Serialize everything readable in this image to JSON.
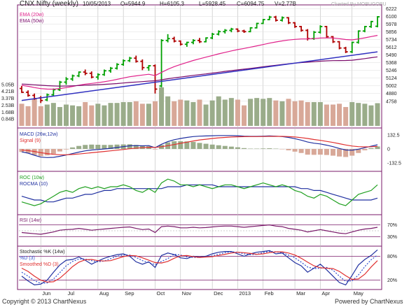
{
  "header": {
    "title": "CNX Nifty (weekly)",
    "date": "10/05/2013",
    "open": "O=5944.9",
    "high": "H=6105.3",
    "low": "L=5928.45",
    "close": "C=6094.75",
    "volume": "V=2.77B",
    "charted_by": "Charted By MOBUGOBU"
  },
  "footer": {
    "copyright": "Copyright © 2013 ChartNexus",
    "powered": "Powered by ChartNexus"
  },
  "colors": {
    "up": "#00a000",
    "down": "#b00000",
    "ema20": "#e0208a",
    "ema50": "#7a0a6a",
    "trend": "#3030c0",
    "vol_up": "#9aac8a",
    "vol_down": "#d8a898",
    "macd": "#2030a0",
    "signal": "#e03030",
    "roc": "#20a020",
    "rocma": "#2030a0",
    "rsi": "#7a1a6a",
    "k": "#2030a0",
    "d": "#3050d0",
    "smooth_d": "#e03030"
  },
  "chart_data": [
    {
      "type": "candlestick",
      "title": "CNX Nifty (weekly)",
      "legend": [
        "EMA (20w)",
        "EMA (50w)"
      ],
      "yticks": [
        6222,
        6100,
        5978,
        5856,
        5734,
        5612,
        5490,
        5368,
        5246,
        5124,
        5002,
        4880,
        4758
      ],
      "ylim": [
        4700,
        6250
      ],
      "volume_ticks": [
        "5.05B",
        "4.21B",
        "3.37B",
        "2.53B",
        "1.68B",
        "0.84B"
      ],
      "volume_ylim": [
        0,
        5.8
      ],
      "xticks": [
        "Jun",
        "Jul",
        "Aug",
        "Sep",
        "Oct",
        "Nov",
        "Dec",
        "2013",
        "Feb",
        "Mar",
        "Apr",
        "May"
      ],
      "candles": [
        [
          4960,
          5000,
          4890,
          4900
        ],
        [
          4900,
          4930,
          4830,
          4850
        ],
        [
          4850,
          4880,
          4780,
          4800
        ],
        [
          4810,
          4840,
          4730,
          4770
        ],
        [
          4780,
          4880,
          4760,
          4860
        ],
        [
          4860,
          4960,
          4840,
          4940
        ],
        [
          4940,
          5080,
          4920,
          5060
        ],
        [
          5060,
          5140,
          5020,
          5110
        ],
        [
          5110,
          5180,
          5080,
          5160
        ],
        [
          5160,
          5230,
          5140,
          5220
        ],
        [
          5220,
          5260,
          5170,
          5200
        ],
        [
          5200,
          5230,
          5120,
          5140
        ],
        [
          5140,
          5200,
          5100,
          5180
        ],
        [
          5180,
          5260,
          5160,
          5240
        ],
        [
          5240,
          5300,
          5210,
          5280
        ],
        [
          5280,
          5360,
          5260,
          5340
        ],
        [
          5340,
          5420,
          5320,
          5400
        ],
        [
          5400,
          5460,
          5380,
          5440
        ],
        [
          5440,
          5480,
          5370,
          5390
        ],
        [
          5390,
          5420,
          5250,
          5290
        ],
        [
          5290,
          5330,
          5240,
          5320
        ],
        [
          5320,
          5340,
          4880,
          4950
        ],
        [
          5000,
          5740,
          4980,
          5720
        ],
        [
          5720,
          5820,
          5690,
          5750
        ],
        [
          5750,
          5780,
          5690,
          5710
        ],
        [
          5710,
          5720,
          5640,
          5660
        ],
        [
          5660,
          5700,
          5620,
          5690
        ],
        [
          5690,
          5740,
          5660,
          5720
        ],
        [
          5720,
          5760,
          5680,
          5700
        ],
        [
          5700,
          5770,
          5690,
          5760
        ],
        [
          5760,
          5840,
          5740,
          5820
        ],
        [
          5820,
          5880,
          5800,
          5860
        ],
        [
          5860,
          5900,
          5830,
          5880
        ],
        [
          5880,
          5920,
          5850,
          5900
        ],
        [
          5900,
          5910,
          5850,
          5870
        ],
        [
          5870,
          5890,
          5840,
          5860
        ],
        [
          5860,
          5930,
          5850,
          5920
        ],
        [
          5920,
          6000,
          5910,
          5990
        ],
        [
          5990,
          6060,
          5980,
          6050
        ],
        [
          6050,
          6110,
          6040,
          6090
        ],
        [
          6090,
          6110,
          6020,
          6040
        ],
        [
          6040,
          6100,
          6020,
          6080
        ],
        [
          6080,
          6090,
          5980,
          6000
        ],
        [
          6000,
          6010,
          5920,
          5940
        ],
        [
          5940,
          5950,
          5860,
          5880
        ],
        [
          5880,
          5900,
          5720,
          5750
        ],
        [
          5750,
          5870,
          5730,
          5850
        ],
        [
          5850,
          5960,
          5830,
          5940
        ],
        [
          5940,
          5950,
          5760,
          5780
        ],
        [
          5780,
          5790,
          5680,
          5700
        ],
        [
          5700,
          5710,
          5580,
          5600
        ],
        [
          5600,
          5620,
          5520,
          5540
        ],
        [
          5540,
          5700,
          5520,
          5690
        ],
        [
          5690,
          5880,
          5670,
          5870
        ],
        [
          5870,
          5950,
          5850,
          5940
        ],
        [
          5940,
          6030,
          5920,
          6020
        ],
        [
          5944.9,
          6105.3,
          5928.45,
          6094.75
        ]
      ],
      "ema20": [
        5010,
        4995,
        4975,
        4958,
        4950,
        4949,
        4959,
        4974,
        4992,
        5012,
        5029,
        5040,
        5052,
        5067,
        5084,
        5104,
        5125,
        5146,
        5160,
        5173,
        5185,
        5164,
        5214,
        5264,
        5306,
        5340,
        5372,
        5403,
        5430,
        5456,
        5482,
        5508,
        5532,
        5555,
        5576,
        5594,
        5614,
        5634,
        5656,
        5678,
        5696,
        5713,
        5727,
        5737,
        5744,
        5745,
        5750,
        5758,
        5761,
        5760,
        5748,
        5735,
        5730,
        5744,
        5762,
        5782,
        5800
      ],
      "ema50": [
        5030,
        5025,
        5018,
        5011,
        5004,
        5000,
        4998,
        4999,
        5002,
        5007,
        5012,
        5016,
        5020,
        5025,
        5031,
        5038,
        5046,
        5055,
        5062,
        5069,
        5076,
        5082,
        5098,
        5114,
        5128,
        5141,
        5154,
        5167,
        5179,
        5191,
        5204,
        5217,
        5230,
        5243,
        5255,
        5266,
        5278,
        5290,
        5303,
        5316,
        5328,
        5340,
        5351,
        5361,
        5370,
        5376,
        5384,
        5392,
        5398,
        5401,
        5402,
        5403,
        5408,
        5420,
        5433,
        5447,
        5461
      ],
      "trendline": [
        [
          0,
          4770
        ],
        [
          56,
          5540
        ]
      ],
      "volume": [
        2.7,
        2.4,
        3.3,
        2.4,
        2.6,
        2.8,
        2.3,
        2.6,
        2.5,
        2.4,
        2.9,
        2.5,
        2.7,
        2.5,
        2.8,
        2.8,
        2.9,
        2.9,
        3.0,
        2.7,
        2.7,
        3.0,
        4.7,
        3.6,
        3.0,
        3.2,
        3.1,
        2.9,
        3.2,
        2.6,
        3.1,
        3.6,
        3.2,
        3.4,
        3.2,
        2.5,
        3.3,
        3.4,
        3.3,
        3.4,
        3.1,
        3.0,
        3.3,
        3.0,
        3.1,
        2.9,
        2.9,
        2.9,
        2.6,
        2.6,
        2.7,
        2.3,
        2.9,
        2.8,
        2.7,
        2.5,
        2.77
      ]
    },
    {
      "type": "line",
      "legend": [
        "MACD (26w,12w)",
        "Signal (9)"
      ],
      "yticks": [
        132.5,
        0,
        -132.5
      ],
      "ylim": [
        -200,
        180
      ],
      "macd": [
        -28,
        -40,
        -60,
        -78,
        -82,
        -80,
        -70,
        -58,
        -44,
        -30,
        -18,
        -10,
        -5,
        0,
        6,
        14,
        22,
        30,
        32,
        30,
        32,
        12,
        45,
        70,
        88,
        100,
        110,
        118,
        122,
        124,
        126,
        128,
        128,
        128,
        126,
        122,
        120,
        120,
        122,
        124,
        122,
        118,
        110,
        98,
        84,
        66,
        55,
        48,
        36,
        22,
        5,
        -10,
        -12,
        -2,
        12,
        26,
        40
      ],
      "signal": [
        -10,
        -15,
        -24,
        -35,
        -44,
        -51,
        -55,
        -55,
        -53,
        -48,
        -42,
        -36,
        -30,
        -24,
        -18,
        -12,
        -5,
        2,
        8,
        12,
        16,
        15,
        21,
        31,
        42,
        54,
        65,
        76,
        86,
        93,
        100,
        106,
        110,
        114,
        116,
        117,
        118,
        118,
        119,
        120,
        120,
        120,
        118,
        114,
        108,
        100,
        90,
        82,
        72,
        62,
        50,
        38,
        28,
        22,
        20,
        21,
        25
      ]
    },
    {
      "type": "line",
      "legend": [
        "ROC (10w)",
        "ROCMA (10)"
      ],
      "ylim": [
        -9,
        12
      ],
      "roc": [
        -3,
        -4,
        -5,
        -4,
        -2,
        0,
        2,
        3,
        2,
        4,
        5,
        4,
        5,
        4,
        5,
        5,
        6,
        5,
        3,
        2,
        4,
        2,
        7,
        9,
        8,
        6,
        6,
        5,
        6,
        5,
        4,
        5,
        6,
        6,
        5,
        4,
        5,
        6,
        7,
        6,
        5,
        6,
        5,
        3,
        2,
        0,
        -1,
        1,
        0,
        -2,
        -4,
        -5,
        -2,
        1,
        2,
        3,
        6
      ],
      "rocma": [
        0,
        -1,
        -2,
        -2,
        -3,
        -3,
        -2,
        -1,
        -1,
        0,
        1,
        1,
        2,
        3,
        3,
        4,
        4,
        4,
        4,
        4,
        4,
        4,
        4,
        5,
        5,
        5,
        6,
        6,
        6,
        6,
        6,
        5,
        5,
        5,
        5,
        5,
        5,
        5,
        5,
        5,
        5,
        5,
        5,
        5,
        4,
        4,
        3,
        3,
        2,
        1,
        0,
        -1,
        -2,
        -2,
        -2,
        -2,
        -1
      ]
    },
    {
      "type": "line",
      "legend": [
        "RSI (14w)"
      ],
      "yticks": [
        "70%",
        "30%"
      ],
      "ylim": [
        0,
        100
      ],
      "rsi": [
        44,
        42,
        40,
        38,
        42,
        46,
        52,
        54,
        55,
        58,
        55,
        52,
        54,
        56,
        58,
        60,
        62,
        63,
        58,
        54,
        56,
        44,
        64,
        66,
        64,
        60,
        60,
        62,
        60,
        61,
        63,
        65,
        66,
        66,
        64,
        62,
        64,
        66,
        68,
        70,
        66,
        64,
        58,
        55,
        52,
        46,
        50,
        54,
        50,
        46,
        42,
        40,
        46,
        52,
        56,
        58,
        62
      ]
    },
    {
      "type": "line",
      "legend": [
        "Stochastic %K (14w)",
        "%D (3)",
        "Smoothed %D (3)"
      ],
      "yticks": [
        "80%",
        "20%"
      ],
      "ylim": [
        0,
        100
      ],
      "k": [
        30,
        18,
        8,
        10,
        20,
        40,
        58,
        70,
        72,
        78,
        70,
        60,
        68,
        75,
        80,
        84,
        86,
        80,
        66,
        60,
        66,
        52,
        82,
        88,
        84,
        76,
        74,
        80,
        78,
        80,
        86,
        90,
        92,
        92,
        86,
        80,
        86,
        90,
        92,
        94,
        86,
        88,
        76,
        64,
        56,
        40,
        50,
        60,
        46,
        30,
        14,
        8,
        32,
        58,
        72,
        82,
        96
      ],
      "d": [
        40,
        30,
        19,
        12,
        13,
        23,
        39,
        56,
        67,
        73,
        73,
        69,
        66,
        68,
        74,
        80,
        83,
        83,
        77,
        69,
        64,
        59,
        67,
        74,
        85,
        83,
        78,
        77,
        77,
        79,
        81,
        85,
        89,
        91,
        90,
        86,
        84,
        85,
        89,
        92,
        91,
        89,
        83,
        76,
        65,
        53,
        49,
        50,
        52,
        45,
        30,
        17,
        18,
        33,
        54,
        71,
        83
      ],
      "smooth_d": [
        50,
        42,
        30,
        20,
        15,
        16,
        25,
        39,
        54,
        65,
        71,
        72,
        69,
        68,
        69,
        74,
        79,
        82,
        81,
        76,
        70,
        64,
        63,
        67,
        75,
        81,
        82,
        79,
        77,
        78,
        79,
        82,
        85,
        88,
        90,
        89,
        87,
        85,
        86,
        89,
        91,
        91,
        88,
        83,
        75,
        65,
        56,
        51,
        50,
        49,
        42,
        31,
        22,
        23,
        35,
        53,
        69
      ]
    }
  ]
}
